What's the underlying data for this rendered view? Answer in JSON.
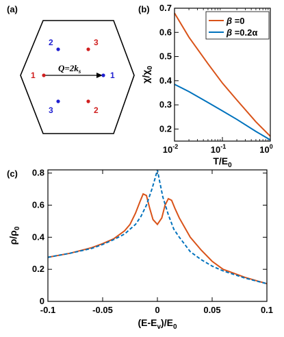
{
  "panel_labels": {
    "a": "(a)",
    "b": "(b)",
    "c": "(c)"
  },
  "hexagon": {
    "arrow_label": "Q=2k",
    "arrow_label_sub": "s",
    "points": [
      {
        "label": "2",
        "color": "#1f1fd0"
      },
      {
        "label": "3",
        "color": "#d01f1f"
      },
      {
        "label": "1",
        "color": "#d01f1f"
      },
      {
        "label": "1",
        "color": "#1f1fd0"
      },
      {
        "label": "3",
        "color": "#1f1fd0"
      },
      {
        "label": "2",
        "color": "#d01f1f"
      }
    ]
  },
  "chart_data": [
    {
      "panel": "b",
      "type": "line",
      "xscale": "log",
      "xlim": [
        0.01,
        1
      ],
      "ylim": [
        0.15,
        0.7
      ],
      "xlabel": "T/E",
      "xlabel_sub": "0",
      "ylabel": "χ/χ",
      "ylabel_sub": "0",
      "xticks": [
        0.01,
        0.1,
        1
      ],
      "xtick_base": [
        "10",
        "10",
        "10"
      ],
      "xtick_exp": [
        "-2",
        "-1",
        "0"
      ],
      "yticks": [
        0.2,
        0.3,
        0.4,
        0.5,
        0.6,
        0.7
      ],
      "ytick_labels": [
        "0.2",
        "0.3",
        "0.4",
        "0.5",
        "0.6",
        "0.7"
      ],
      "legend": {
        "placement": "top-right",
        "entries": [
          {
            "prefix": "β",
            "text": " =0"
          },
          {
            "prefix": "β",
            "text": " =0.2α"
          }
        ]
      },
      "series": [
        {
          "color": "#d95319",
          "x": [
            0.01,
            0.02,
            0.05,
            0.1,
            0.2,
            0.5,
            1.0
          ],
          "y": [
            0.68,
            0.58,
            0.47,
            0.39,
            0.32,
            0.23,
            0.17
          ]
        },
        {
          "color": "#0072bd",
          "x": [
            0.01,
            0.02,
            0.05,
            0.1,
            0.2,
            0.5,
            1.0
          ],
          "y": [
            0.385,
            0.355,
            0.31,
            0.275,
            0.24,
            0.19,
            0.155
          ]
        }
      ]
    },
    {
      "panel": "c",
      "type": "line",
      "xlim": [
        -0.1,
        0.1
      ],
      "ylim": [
        0,
        0.82
      ],
      "xlabel": "(E-E",
      "xlabel_sub": "v",
      "xlabel_tail": ")/E",
      "xlabel_sub2": "0",
      "ylabel": "ρ/ρ",
      "ylabel_sub": "0",
      "xticks": [
        -0.1,
        -0.05,
        0,
        0.05,
        0.1
      ],
      "xtick_labels": [
        "-0.1",
        "-0.05",
        "0",
        "0.05",
        "0.1"
      ],
      "yticks": [
        0,
        0.2,
        0.4,
        0.6,
        0.8
      ],
      "ytick_labels": [
        "0",
        "0.2",
        "0.4",
        "0.6",
        "0.8"
      ],
      "series": [
        {
          "style": "solid",
          "color": "#d95319",
          "x": [
            -0.1,
            -0.08,
            -0.06,
            -0.05,
            -0.04,
            -0.03,
            -0.025,
            -0.02,
            -0.016,
            -0.013,
            -0.01,
            -0.007,
            -0.004,
            0,
            0.004,
            0.007,
            0.01,
            0.013,
            0.016,
            0.02,
            0.025,
            0.03,
            0.04,
            0.05,
            0.06,
            0.08,
            0.1
          ],
          "y": [
            0.275,
            0.3,
            0.335,
            0.36,
            0.39,
            0.44,
            0.48,
            0.55,
            0.62,
            0.67,
            0.66,
            0.58,
            0.51,
            0.48,
            0.52,
            0.6,
            0.64,
            0.63,
            0.58,
            0.52,
            0.46,
            0.4,
            0.32,
            0.25,
            0.2,
            0.15,
            0.11
          ]
        },
        {
          "style": "dashed",
          "color": "#0072bd",
          "x": [
            -0.1,
            -0.08,
            -0.06,
            -0.05,
            -0.04,
            -0.03,
            -0.02,
            -0.015,
            -0.01,
            -0.005,
            -0.002,
            0,
            0.002,
            0.005,
            0.01,
            0.015,
            0.02,
            0.03,
            0.04,
            0.05,
            0.06,
            0.08,
            0.1
          ],
          "y": [
            0.275,
            0.3,
            0.33,
            0.355,
            0.385,
            0.42,
            0.48,
            0.53,
            0.6,
            0.7,
            0.77,
            0.82,
            0.75,
            0.65,
            0.54,
            0.45,
            0.4,
            0.31,
            0.26,
            0.22,
            0.19,
            0.145,
            0.11
          ]
        }
      ]
    }
  ]
}
